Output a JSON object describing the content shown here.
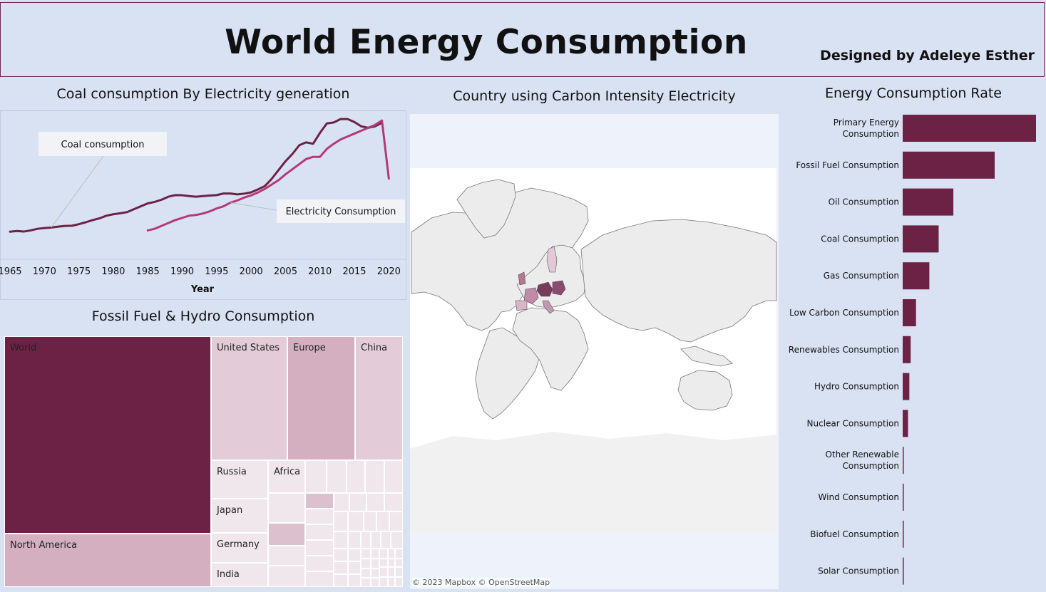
{
  "header": {
    "title": "World Energy Consumption",
    "designer": "Designed by Adeleye Esther"
  },
  "line_chart": {
    "title": "Coal consumption By Electricity generation",
    "xlabel": "Year",
    "annotation_coal": "Coal consumption",
    "annotation_elec": "Electricity Consumption"
  },
  "treemap": {
    "title": "Fossil Fuel & Hydro Consumption"
  },
  "map": {
    "title": "Country using Carbon Intensity Electricity",
    "attribution": "© 2023 Mapbox © OpenStreetMap"
  },
  "bar_chart": {
    "title": "Energy Consumption Rate"
  },
  "colors": {
    "background": "#d9e2f3",
    "dark_plum": "#6b2245",
    "electricity_pink": "#b5387a",
    "light_mauve": "#d4afc0",
    "pale_mauve": "#e3ccd7",
    "pale_gray": "#efe7ec"
  },
  "chart_data": [
    {
      "type": "line",
      "title": "Coal consumption By Electricity generation",
      "xlabel": "Year",
      "ylabel": "",
      "xlim": [
        1965,
        2021
      ],
      "ylim": [
        0,
        100
      ],
      "x_ticks": [
        1965,
        1970,
        1975,
        1980,
        1985,
        1990,
        1995,
        2000,
        2005,
        2010,
        2015,
        2020
      ],
      "series": [
        {
          "name": "Coal consumption",
          "color": "#6b2245",
          "x": [
            1965,
            1966,
            1967,
            1968,
            1969,
            1970,
            1971,
            1972,
            1973,
            1974,
            1975,
            1976,
            1977,
            1978,
            1979,
            1980,
            1981,
            1982,
            1983,
            1984,
            1985,
            1986,
            1987,
            1988,
            1989,
            1990,
            1991,
            1992,
            1993,
            1994,
            1995,
            1996,
            1997,
            1998,
            1999,
            2000,
            2001,
            2002,
            2003,
            2004,
            2005,
            2006,
            2007,
            2008,
            2009,
            2010,
            2011,
            2012,
            2013,
            2014,
            2015,
            2016,
            2017,
            2018,
            2019
          ],
          "y": [
            18.5,
            19,
            18.6,
            19.4,
            20.5,
            21,
            21.4,
            22,
            22.5,
            22.6,
            23.7,
            25,
            26.5,
            27.7,
            29.5,
            30.5,
            31.2,
            32,
            34,
            36,
            38,
            39,
            40.5,
            42.6,
            43.7,
            43.6,
            43,
            42.6,
            43,
            43.4,
            43.7,
            44.8,
            44.8,
            44.2,
            44.7,
            45.6,
            47.6,
            49.9,
            54.9,
            61,
            67,
            72,
            78,
            80,
            79,
            86.5,
            93,
            93.7,
            96,
            96,
            94,
            91,
            90,
            91,
            93.5
          ]
        },
        {
          "name": "Electricity Consumption",
          "color": "#b5387a",
          "x": [
            1985,
            1986,
            1987,
            1988,
            1989,
            1990,
            1991,
            1992,
            1993,
            1994,
            1995,
            1996,
            1997,
            1998,
            1999,
            2000,
            2001,
            2002,
            2003,
            2004,
            2005,
            2006,
            2007,
            2008,
            2009,
            2010,
            2011,
            2012,
            2013,
            2014,
            2015,
            2016,
            2017,
            2018,
            2019,
            2020
          ],
          "y": [
            19.4,
            20.5,
            22.5,
            24.5,
            26.5,
            28,
            29.5,
            30,
            31,
            32.5,
            34.5,
            36,
            38.5,
            40,
            42,
            43.5,
            45.5,
            48,
            51,
            54,
            58,
            61.5,
            65,
            68.5,
            70,
            70,
            75.5,
            79,
            82,
            84,
            86,
            88,
            90,
            92,
            95,
            55
          ]
        }
      ]
    },
    {
      "type": "treemap",
      "title": "Fossil Fuel & Hydro Consumption",
      "items": [
        {
          "name": "World",
          "shade": "dark"
        },
        {
          "name": "North America",
          "shade": "light"
        },
        {
          "name": "United States",
          "shade": "pale"
        },
        {
          "name": "Europe",
          "shade": "light"
        },
        {
          "name": "China",
          "shade": "pale"
        },
        {
          "name": "Russia",
          "shade": "faint"
        },
        {
          "name": "Africa",
          "shade": "faint"
        },
        {
          "name": "Japan",
          "shade": "faint"
        },
        {
          "name": "Germany",
          "shade": "faint"
        },
        {
          "name": "India",
          "shade": "faint"
        }
      ]
    },
    {
      "type": "bar",
      "orientation": "horizontal",
      "title": "Energy Consumption Rate",
      "color": "#6b2245",
      "categories": [
        "Primary Energy Consumption",
        "Fossil Fuel Consumption",
        "Oil Consumption",
        "Coal Consumption",
        "Gas Consumption",
        "Low Carbon Consumption",
        "Renewables Consumption",
        "Hydro Consumption",
        "Nuclear Consumption",
        "Other Renewable Consumption",
        "Wind Consumption",
        "Biofuel Consumption",
        "Solar Consumption"
      ],
      "label_lines": [
        [
          "Primary Energy",
          "Consumption"
        ],
        [
          "Fossil Fuel Consumption"
        ],
        [
          "Oil Consumption"
        ],
        [
          "Coal Consumption"
        ],
        [
          "Gas Consumption"
        ],
        [
          "Low Carbon Consumption"
        ],
        [
          "Renewables Consumption"
        ],
        [
          "Hydro Consumption"
        ],
        [
          "Nuclear Consumption"
        ],
        [
          "Other Renewable",
          "Consumption"
        ],
        [
          "Wind Consumption"
        ],
        [
          "Biofuel Consumption"
        ],
        [
          "Solar Consumption"
        ]
      ],
      "values": [
        100,
        69,
        38,
        27,
        20,
        10,
        6,
        5,
        4,
        0.8,
        0.7,
        0.6,
        0.5
      ]
    }
  ]
}
